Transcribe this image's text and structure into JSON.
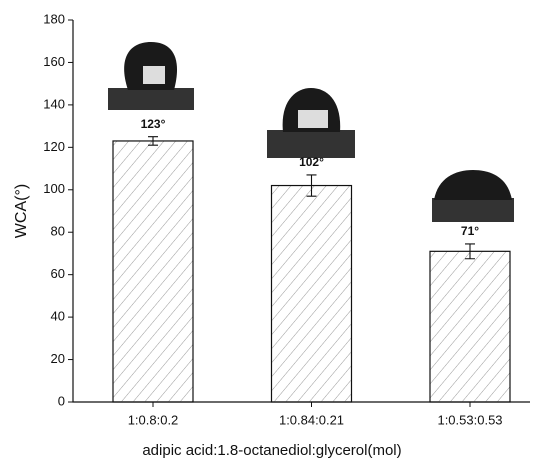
{
  "chart_data": {
    "type": "bar",
    "x_label": "adipic acid:1.8-octanediol:glycerol(mol)",
    "y_label": "WCA(°)",
    "categories": [
      "1:0.8:0.2",
      "1:0.84:0.21",
      "1:0.53:0.53"
    ],
    "values": [
      123,
      102,
      71
    ],
    "value_labels": [
      "123°",
      "102°",
      "71°"
    ],
    "errors": [
      2,
      5,
      3.5
    ],
    "color": "#ffffff",
    "ylim": [
      0,
      180
    ],
    "yticks": [
      0,
      20,
      40,
      60,
      80,
      100,
      120,
      140,
      160,
      180
    ],
    "grid": false
  }
}
